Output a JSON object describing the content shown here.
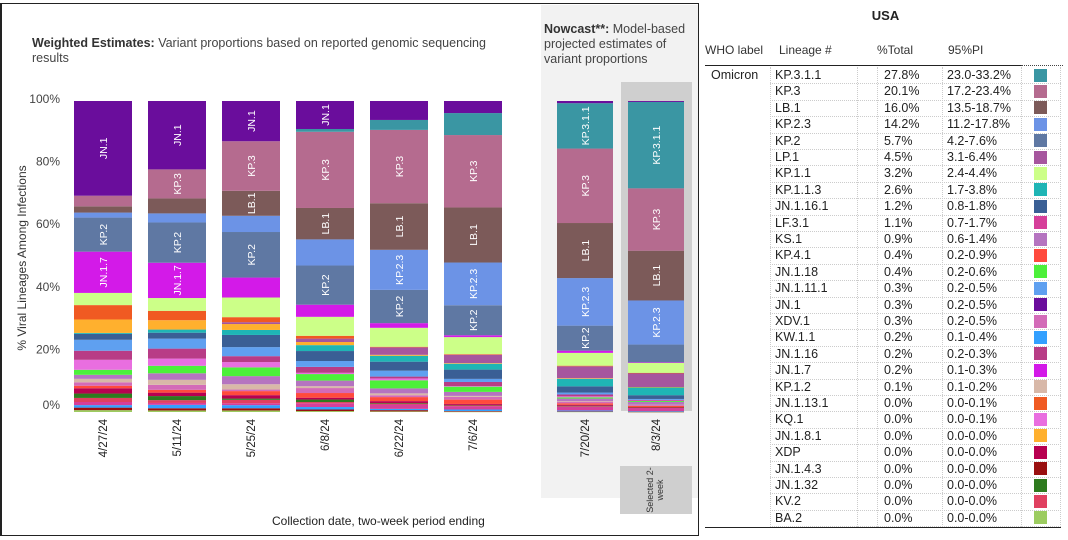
{
  "weighted_title_bold": "Weighted Estimates:",
  "weighted_title_rest": " Variant proportions based on reported genomic sequencing results",
  "nowcast_title_bold": "Nowcast**:",
  "nowcast_title_rest": " Model-based projected estimates of variant proportions",
  "selected_label": "Selected 2-week",
  "table": {
    "region": "USA",
    "headers": [
      "WHO label",
      "Lineage #",
      "%Total",
      "95%PI"
    ],
    "who_label": "Omicron",
    "rows": [
      [
        "KP.3.1.1",
        "27.8%",
        "23.0-33.2%",
        "#3a96a3"
      ],
      [
        "KP.3",
        "20.1%",
        "17.2-23.4%",
        "#b56b8f"
      ],
      [
        "LB.1",
        "16.0%",
        "13.5-18.7%",
        "#7c5a59"
      ],
      [
        "KP.2.3",
        "14.2%",
        "11.2-17.8%",
        "#6c93e6"
      ],
      [
        "KP.2",
        "5.7%",
        "4.2-7.6%",
        "#5f78a3"
      ],
      [
        "LP.1",
        "4.5%",
        "3.1-6.4%",
        "#a6569e"
      ],
      [
        "KP.1.1",
        "3.2%",
        "2.4-4.4%",
        "#ccff88"
      ],
      [
        "KP.1.1.3",
        "2.6%",
        "1.7-3.8%",
        "#1fb5b5"
      ],
      [
        "JN.1.16.1",
        "1.2%",
        "0.8-1.8%",
        "#3a5f95"
      ],
      [
        "LF.3.1",
        "1.1%",
        "0.7-1.7%",
        "#d63f9a"
      ],
      [
        "KS.1",
        "0.9%",
        "0.6-1.4%",
        "#b574c0"
      ],
      [
        "KP.4.1",
        "0.4%",
        "0.2-0.9%",
        "#ff4a3d"
      ],
      [
        "JN.1.18",
        "0.4%",
        "0.2-0.6%",
        "#4cf03a"
      ],
      [
        "JN.1.11.1",
        "0.3%",
        "0.2-0.5%",
        "#5fa0f0"
      ],
      [
        "JN.1",
        "0.3%",
        "0.2-0.5%",
        "#6a0d9c"
      ],
      [
        "XDV.1",
        "0.3%",
        "0.2-0.5%",
        "#d36bb8"
      ],
      [
        "KW.1.1",
        "0.2%",
        "0.1-0.4%",
        "#33a0ff"
      ],
      [
        "JN.1.16",
        "0.2%",
        "0.2-0.3%",
        "#b83c86"
      ],
      [
        "JN.1.7",
        "0.2%",
        "0.1-0.3%",
        "#d31ae8"
      ],
      [
        "KP.1.2",
        "0.1%",
        "0.1-0.2%",
        "#d8b8a8"
      ],
      [
        "JN.1.13.1",
        "0.0%",
        "0.0-0.1%",
        "#f05a22"
      ],
      [
        "KQ.1",
        "0.0%",
        "0.0-0.1%",
        "#e96ee0"
      ],
      [
        "JN.1.8.1",
        "0.0%",
        "0.0-0.0%",
        "#ffb02e"
      ],
      [
        "XDP",
        "0.0%",
        "0.0-0.0%",
        "#b80050"
      ],
      [
        "JN.1.4.3",
        "0.0%",
        "0.0-0.0%",
        "#9a1010"
      ],
      [
        "JN.1.32",
        "0.0%",
        "0.0-0.0%",
        "#2e7a1e"
      ],
      [
        "KV.2",
        "0.0%",
        "0.0-0.0%",
        "#e04060"
      ],
      [
        "BA.2",
        "0.0%",
        "0.0-0.0%",
        "#9ccc60"
      ]
    ]
  },
  "chart_data": {
    "type": "bar",
    "stacked": true,
    "ylabel": "% Viral Lineages Among Infections",
    "xlabel": "Collection date, two-week period ending",
    "ylim": [
      0,
      100
    ],
    "yticks": [
      "0%",
      "20%",
      "40%",
      "60%",
      "80%",
      "100%"
    ],
    "stack_order_top_to_bottom": [
      "JN.1",
      "KP.3.1.1",
      "KP.3",
      "LB.1",
      "KP.2.3",
      "KP.2",
      "JN.1.7",
      "KP.1.1",
      "JN.1.13.1",
      "LP.1",
      "JN.1.8.1",
      "KP.1.1.3",
      "JN.1.16.1",
      "JN.1.11.1",
      "JN.1.16",
      "KQ.1",
      "JN.1.18",
      "KS.1",
      "KP.1.2",
      "XDV.1",
      "KP.4.1",
      "XDP",
      "JN.1.32",
      "KV.2",
      "LF.3.1",
      "KW.1.1",
      "JN.1.4.3",
      "BA.2"
    ],
    "bars": [
      {
        "date": "4/27/24",
        "type": "weighted",
        "labeled": [
          "JN.1",
          "KP.2",
          "JN.1.7"
        ],
        "values": {
          "JN.1": 30.3,
          "KP.3": 3.4,
          "LB.1": 2.0,
          "KP.2.3": 1.6,
          "KP.2": 10.9,
          "JN.1.7": 13.2,
          "KP.1.1": 3.9,
          "JN.1.13.1": 4.6,
          "JN.1.8.1": 4.3,
          "KP.1.1.3": 0.3,
          "JN.1.16.1": 1.9,
          "JN.1.11.1": 3.5,
          "JN.1.16": 2.9,
          "KQ.1": 3.2,
          "JN.1.18": 1.6,
          "KS.1": 1.3,
          "KP.1.2": 1.1,
          "XDV.1": 1.1,
          "KP.4.1": 0.8,
          "XDP": 1.7,
          "JN.1.32": 1.4,
          "KV.2": 1.3,
          "LF.3.1": 1.0,
          "KW.1.1": 0.8,
          "JN.1.4.3": 0.8,
          "BA.2": 0.6
        }
      },
      {
        "date": "5/11/24",
        "type": "weighted",
        "labeled": [
          "JN.1",
          "KP.3",
          "KP.2",
          "JN.1.7"
        ],
        "values": {
          "JN.1": 21.9,
          "KP.3": 9.3,
          "LB.1": 4.8,
          "KP.2.3": 2.9,
          "KP.2": 12.9,
          "JN.1.7": 11.3,
          "KP.1.1": 4.1,
          "JN.1.13.1": 3.0,
          "JN.1.8.1": 3.0,
          "KP.1.1.3": 1.0,
          "JN.1.16.1": 1.9,
          "JN.1.11.1": 3.2,
          "JN.1.16": 3.2,
          "KQ.1": 2.3,
          "JN.1.18": 2.4,
          "KS.1": 2.1,
          "KP.1.2": 1.6,
          "XDV.1": 1.6,
          "KP.4.1": 0.9,
          "XDP": 1.1,
          "JN.1.32": 1.3,
          "KV.2": 0.9,
          "LF.3.1": 0.6,
          "KW.1.1": 1.1,
          "JN.1.4.3": 0.7,
          "BA.2": 0.5
        }
      },
      {
        "date": "5/25/24",
        "type": "weighted",
        "labeled": [
          "JN.1",
          "KP.3",
          "LB.1",
          "KP.2"
        ],
        "values": {
          "JN.1": 12.9,
          "KP.3": 15.9,
          "LB.1": 8.0,
          "KP.2.3": 5.2,
          "KP.2": 14.6,
          "JN.1.7": 6.4,
          "KP.1.1": 6.3,
          "JN.1.13.1": 1.6,
          "LP.1": 0.6,
          "JN.1.8.1": 1.9,
          "KP.1.1.3": 1.6,
          "JN.1.16.1": 3.9,
          "JN.1.11.1": 2.9,
          "JN.1.16": 1.9,
          "KQ.1": 1.7,
          "JN.1.18": 2.8,
          "KS.1": 2.6,
          "KP.1.2": 1.7,
          "XDV.1": 0.5,
          "KP.4.1": 1.3,
          "XDP": 1.1,
          "JN.1.32": 0.4,
          "KV.2": 1.1,
          "LF.3.1": 0.6,
          "KW.1.1": 1.0,
          "JN.1.4.3": 0.7,
          "BA.2": 0.5
        }
      },
      {
        "date": "6/8/24",
        "type": "weighted",
        "labeled": [
          "JN.1",
          "KP.3",
          "LB.1",
          "KP.2"
        ],
        "values": {
          "JN.1": 9.0,
          "KP.3.1.1": 0.9,
          "KP.3": 24.5,
          "LB.1": 10.1,
          "KP.2.3": 8.4,
          "KP.2": 12.6,
          "JN.1.7": 3.9,
          "KP.1.1": 6.1,
          "JN.1.13.1": 0.9,
          "LP.1": 1.1,
          "JN.1.8.1": 1.0,
          "KP.1.1.3": 1.9,
          "JN.1.16.1": 3.2,
          "JN.1.11.1": 1.9,
          "JN.1.16": 1.9,
          "KQ.1": 0.4,
          "JN.1.18": 2.1,
          "KS.1": 1.8,
          "KP.1.2": 0.6,
          "XDV.1": 1.6,
          "KP.4.1": 1.5,
          "XDP": 0.6,
          "JN.1.32": 0.8,
          "KV.2": 0.4,
          "LF.3.1": 1.2,
          "KW.1.1": 0.8,
          "JN.1.4.3": 0.5,
          "BA.2": 0.3
        }
      },
      {
        "date": "6/22/24",
        "type": "weighted",
        "labeled": [
          "KP.3",
          "LB.1",
          "KP.2.3",
          "KP.2"
        ],
        "values": {
          "JN.1": 6.1,
          "KP.3.1.1": 3.2,
          "KP.3": 23.6,
          "LB.1": 15.0,
          "KP.2.3": 12.9,
          "KP.2": 10.7,
          "JN.1.7": 1.5,
          "KP.1.1": 6.1,
          "JN.1.13.1": 0.2,
          "LP.1": 2.4,
          "JN.1.8.1": 0.3,
          "KP.1.1.3": 1.9,
          "JN.1.16.1": 2.9,
          "JN.1.11.1": 1.9,
          "JN.1.16": 0.6,
          "KQ.1": 0.6,
          "JN.1.18": 2.6,
          "KS.1": 1.6,
          "KP.1.2": 0.6,
          "XDV.1": 0.6,
          "KP.4.1": 1.3,
          "XDP": 0.6,
          "JN.1.32": 0.2,
          "KV.2": 0.3,
          "LF.3.1": 1.4,
          "KW.1.1": 0.4,
          "JN.1.4.3": 0.4,
          "BA.2": 0.2
        }
      },
      {
        "date": "7/6/24",
        "type": "weighted",
        "labeled": [
          "KP.3",
          "LB.1",
          "KP.2.3",
          "KP.2"
        ],
        "values": {
          "JN.1": 3.9,
          "KP.3.1.1": 7.1,
          "KP.3": 23.4,
          "LB.1": 17.8,
          "KP.2.3": 13.8,
          "KP.2": 9.7,
          "JN.1.7": 0.6,
          "KP.1.1": 5.5,
          "JN.1.13.1": 0.2,
          "LP.1": 2.7,
          "JN.1.8.1": 0.2,
          "KP.1.1.3": 1.9,
          "JN.1.16.1": 3.0,
          "JN.1.11.1": 1.0,
          "JN.1.16": 1.3,
          "KQ.1": 0.2,
          "JN.1.18": 1.7,
          "KS.1": 1.3,
          "KP.1.2": 0.3,
          "XDV.1": 0.9,
          "KP.4.1": 1.4,
          "XDP": 0.3,
          "JN.1.32": 0.1,
          "KV.2": 0.3,
          "LF.3.1": 1.1,
          "KW.1.1": 0.5,
          "JN.1.4.3": 0.2,
          "BA.2": 0.1
        }
      },
      {
        "date": "7/20/24",
        "type": "nowcast",
        "labeled": [
          "KP.3.1.1",
          "KP.3",
          "LB.1",
          "KP.2.3",
          "KP.2"
        ],
        "values": {
          "JN.1": 0.7,
          "KP.3.1.1": 14.5,
          "KP.3": 23.8,
          "LB.1": 17.6,
          "KP.2.3": 15.2,
          "KP.2": 8.0,
          "JN.1.7": 0.7,
          "KP.1.1": 4.1,
          "JN.1.13.1": 0.2,
          "LP.1": 3.8,
          "JN.1.8.1": 0.2,
          "KP.1.1.3": 2.4,
          "JN.1.16.1": 2.0,
          "JN.1.11.1": 0.6,
          "JN.1.16": 0.6,
          "KQ.1": 0.3,
          "JN.1.18": 0.4,
          "KS.1": 0.8,
          "KP.1.2": 0.2,
          "XDV.1": 0.5,
          "KP.4.1": 0.5,
          "XDP": 0.3,
          "JN.1.32": 0.1,
          "KV.2": 0.2,
          "LF.3.1": 1.2,
          "KW.1.1": 0.3,
          "JN.1.4.3": 0.1,
          "BA.2": 0.1
        }
      },
      {
        "date": "8/3/24",
        "type": "nowcast",
        "selected": true,
        "labeled": [
          "KP.3.1.1",
          "KP.3",
          "LB.1",
          "KP.2.3"
        ],
        "values": {
          "JN.1": 0.3,
          "KP.3.1.1": 27.8,
          "KP.3": 20.1,
          "LB.1": 16.0,
          "KP.2.3": 14.2,
          "KP.2": 5.7,
          "JN.1.7": 0.2,
          "KP.1.1": 3.2,
          "JN.1.13.1": 0.05,
          "LP.1": 4.5,
          "JN.1.8.1": 0.05,
          "KP.1.1.3": 2.6,
          "JN.1.16.1": 1.2,
          "JN.1.11.1": 0.3,
          "JN.1.16": 0.2,
          "KQ.1": 0.05,
          "JN.1.18": 0.4,
          "KS.1": 0.9,
          "KP.1.2": 0.1,
          "XDV.1": 0.3,
          "KP.4.1": 0.4,
          "XDP": 0.05,
          "JN.1.32": 0.05,
          "KV.2": 0.05,
          "LF.3.1": 1.1,
          "KW.1.1": 0.2,
          "JN.1.4.3": 0.05,
          "BA.2": 0.05
        }
      }
    ]
  }
}
